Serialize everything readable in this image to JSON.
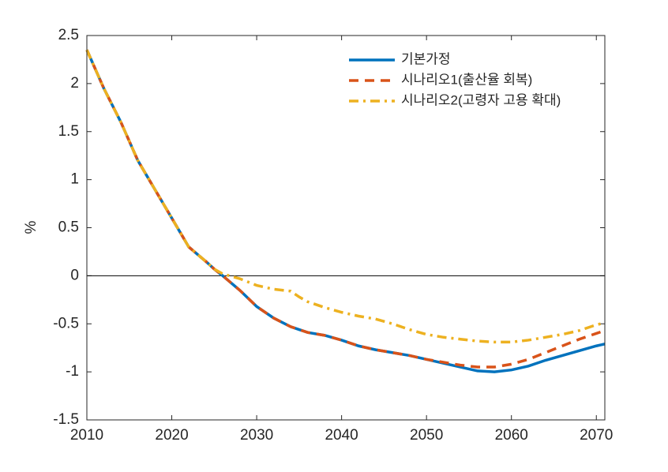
{
  "chart_data": {
    "type": "line",
    "y_label": "%",
    "x": [
      2010,
      2012,
      2014,
      2016,
      2018,
      2020,
      2022,
      2024,
      2025,
      2026,
      2028,
      2030,
      2032,
      2034,
      2035,
      2036,
      2038,
      2040,
      2042,
      2044,
      2046,
      2048,
      2050,
      2052,
      2054,
      2056,
      2058,
      2060,
      2062,
      2064,
      2066,
      2068,
      2070,
      2071
    ],
    "series": [
      {
        "name": "기본가정",
        "color": "#0072bd",
        "dash": "solid",
        "values": [
          2.35,
          1.95,
          1.6,
          1.2,
          0.9,
          0.6,
          0.3,
          0.15,
          0.07,
          0.0,
          -0.15,
          -0.32,
          -0.44,
          -0.53,
          -0.56,
          -0.59,
          -0.62,
          -0.67,
          -0.73,
          -0.77,
          -0.8,
          -0.83,
          -0.87,
          -0.91,
          -0.95,
          -0.99,
          -1.0,
          -0.98,
          -0.94,
          -0.88,
          -0.83,
          -0.78,
          -0.73,
          -0.71
        ]
      },
      {
        "name": "시나리오1(출산율 회복)",
        "color": "#d95319",
        "dash": "dashed",
        "values": [
          2.35,
          1.95,
          1.6,
          1.2,
          0.9,
          0.6,
          0.3,
          0.15,
          0.07,
          0.0,
          -0.15,
          -0.32,
          -0.44,
          -0.53,
          -0.56,
          -0.59,
          -0.62,
          -0.67,
          -0.73,
          -0.77,
          -0.8,
          -0.83,
          -0.87,
          -0.9,
          -0.93,
          -0.95,
          -0.95,
          -0.92,
          -0.87,
          -0.8,
          -0.73,
          -0.66,
          -0.6,
          -0.57
        ]
      },
      {
        "name": "시나리오2(고령자 고용 확대)",
        "color": "#edb120",
        "dash": "dashdot",
        "values": [
          2.35,
          1.95,
          1.6,
          1.2,
          0.9,
          0.6,
          0.3,
          0.15,
          0.07,
          0.02,
          -0.03,
          -0.1,
          -0.14,
          -0.16,
          -0.22,
          -0.27,
          -0.33,
          -0.38,
          -0.42,
          -0.45,
          -0.5,
          -0.56,
          -0.61,
          -0.64,
          -0.66,
          -0.68,
          -0.69,
          -0.69,
          -0.67,
          -0.64,
          -0.61,
          -0.57,
          -0.51,
          -0.49
        ]
      }
    ],
    "xlim": [
      2010,
      2071
    ],
    "xticks": [
      2010,
      2020,
      2030,
      2040,
      2050,
      2060,
      2070
    ],
    "ylim": [
      -1.5,
      2.5
    ],
    "yticks": [
      2.5,
      2,
      1.5,
      1,
      0.5,
      0,
      -0.5,
      -1,
      -1.5
    ],
    "zero_line": true,
    "grid": false,
    "legend": "top-right"
  }
}
